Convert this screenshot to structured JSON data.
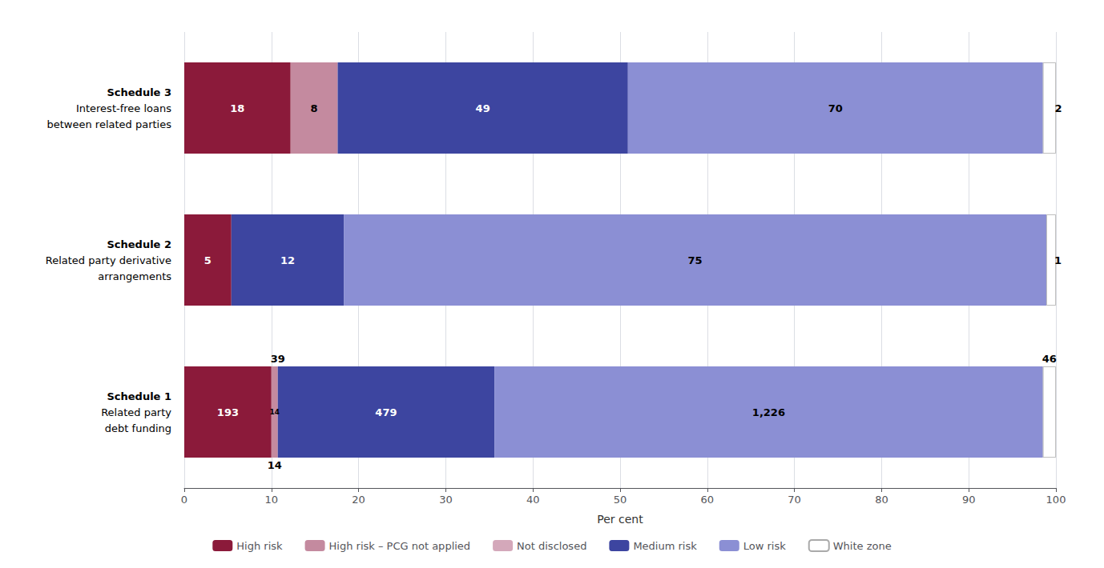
{
  "chart_data": {
    "type": "bar",
    "orientation": "horizontal",
    "stacked": true,
    "grid": true,
    "legend": "bottom",
    "xlabel": "Per cent",
    "xlim": [
      0,
      100
    ],
    "xticks": [
      0,
      10,
      20,
      30,
      40,
      50,
      60,
      70,
      80,
      90,
      100
    ],
    "categories": [
      "Schedule 1\nRelated party\ndebt funding",
      "Schedule 2\nRelated party derivative\narrangements",
      "Schedule 3\nInterest-free loans\nbetween related parties"
    ],
    "series": [
      {
        "name": "High risk",
        "color": "#8B1A3A",
        "values": [
          10.0,
          5.4,
          12.2
        ],
        "counts": [
          "193",
          "5",
          "18"
        ]
      },
      {
        "name": "High risk – PCG not applied",
        "color": "#C48A9F",
        "values": [
          0.73,
          0.0,
          5.4
        ],
        "counts": [
          "14",
          null,
          "8"
        ]
      },
      {
        "name": "Not disclosed",
        "color": "#D4A8BA",
        "values": [
          null,
          null,
          null
        ]
      },
      {
        "name": "Medium risk",
        "color": "#3D45A0",
        "values": [
          24.85,
          12.9,
          33.3
        ],
        "counts": [
          "479",
          "12",
          "49"
        ]
      },
      {
        "name": "Low risk",
        "color": "#8B8FD4",
        "values": [
          62.92,
          80.6,
          47.6
        ],
        "counts": [
          "1,226",
          "75",
          "70"
        ]
      },
      {
        "name": "White zone",
        "color": "#FFFFFF",
        "values": [
          1.5,
          1.1,
          1.5
        ]
      }
    ],
    "annotations": [
      {
        "category": "Schedule 1\nRelated party\ndebt funding",
        "text": "39",
        "x": 10.73,
        "position": "above"
      },
      {
        "category": "Schedule 1\nRelated party\ndebt funding",
        "text": "14",
        "x": 10.37,
        "position": "below"
      },
      {
        "category": "Schedule 1\nRelated party\ndebt funding",
        "text": "46",
        "x": 99.25,
        "position": "above"
      },
      {
        "category": "Schedule 2\nRelated party derivative\narrangements",
        "text": "1",
        "x": 99.45,
        "position": "right_outside"
      },
      {
        "category": "Schedule 3\nInterest-free loans\nbetween related parties",
        "text": "2",
        "x": 99.5,
        "position": "right_outside"
      }
    ]
  }
}
